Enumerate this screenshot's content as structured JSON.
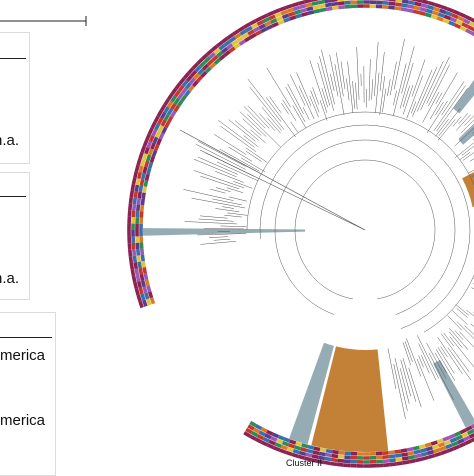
{
  "legend": {
    "na_label_1": "n.a.",
    "na_label_2": "n.a.",
    "region_label_1": "merica",
    "region_label_2": "merica"
  },
  "tree": {
    "cluster_label": "Cluster II"
  },
  "colors": {
    "highlight_orange": "#c07a2c",
    "highlight_grey": "#8aa3ad",
    "ring_palette": [
      "#8b2252",
      "#c0392b",
      "#e0c341",
      "#3b6fa8",
      "#5a3d8a",
      "#2e8b57",
      "#d97a2b",
      "#9b59b6"
    ]
  }
}
